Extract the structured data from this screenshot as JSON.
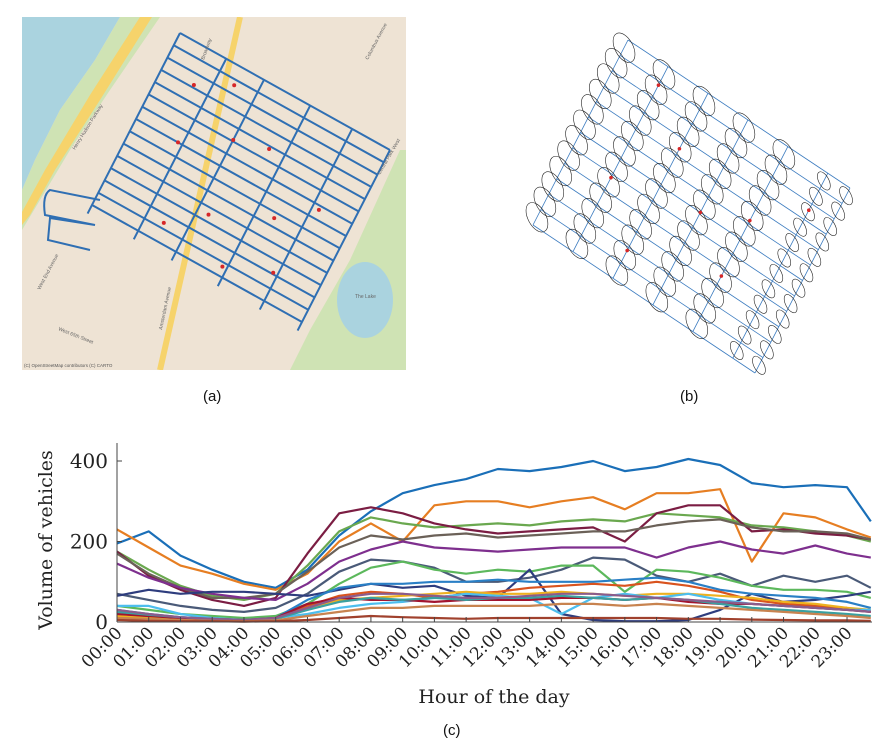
{
  "panels": {
    "a": {
      "label": "(a)",
      "attribution": "(C) OpenStreetMap contributors (C) CARTO",
      "map_labels": [
        "Henry Hudson Parkway",
        "West End Avenue",
        "Broadway",
        "Amsterdam Avenue",
        "Columbus Avenue",
        "Central Park West",
        "West 65th Street",
        "The Lake"
      ]
    },
    "b": {
      "label": "(b)"
    },
    "c": {
      "label": "(c)"
    }
  },
  "colors": {
    "road_network": "#2f6fb3",
    "water": "#aad3df",
    "park": "#cfe3b4",
    "highway": "#f6d36b",
    "nodes": "#d62728"
  },
  "chart_data": {
    "type": "line",
    "xlabel": "Hour of the day",
    "ylabel": "Volume of vehicles",
    "ylim": [
      0,
      450
    ],
    "yticks": [
      0,
      200,
      400
    ],
    "xticks": [
      "00:00",
      "01:00",
      "02:00",
      "03:00",
      "04:00",
      "05:00",
      "06:00",
      "07:00",
      "08:00",
      "09:00",
      "10:00",
      "11:00",
      "12:00",
      "13:00",
      "14:00",
      "15:00",
      "16:00",
      "17:00",
      "18:00",
      "19:00",
      "20:00",
      "21:00",
      "22:00",
      "23:00"
    ],
    "x": [
      0,
      1,
      2,
      3,
      4,
      5,
      6,
      7,
      8,
      9,
      10,
      11,
      12,
      13,
      14,
      15,
      16,
      17,
      18,
      19,
      20,
      21,
      22,
      23,
      23.75
    ],
    "grid": false,
    "series": [
      {
        "color": "#1a6fb8",
        "values": [
          195,
          225,
          165,
          130,
          100,
          85,
          130,
          215,
          275,
          320,
          340,
          355,
          380,
          375,
          385,
          400,
          375,
          385,
          405,
          390,
          345,
          335,
          340,
          335,
          250
        ]
      },
      {
        "color": "#e67e22",
        "values": [
          230,
          185,
          140,
          120,
          95,
          80,
          120,
          200,
          245,
          200,
          290,
          300,
          300,
          285,
          300,
          310,
          280,
          320,
          320,
          330,
          150,
          270,
          260,
          230,
          210
        ]
      },
      {
        "color": "#6aa84f",
        "values": [
          175,
          130,
          90,
          65,
          55,
          70,
          140,
          225,
          260,
          245,
          235,
          240,
          245,
          240,
          250,
          255,
          250,
          270,
          265,
          260,
          240,
          235,
          225,
          215,
          200
        ]
      },
      {
        "color": "#7b1d43",
        "values": [
          175,
          115,
          80,
          55,
          40,
          60,
          170,
          270,
          285,
          270,
          245,
          230,
          220,
          225,
          230,
          235,
          200,
          270,
          290,
          290,
          225,
          230,
          220,
          215,
          205
        ]
      },
      {
        "color": "#6b6158",
        "values": [
          170,
          120,
          85,
          60,
          60,
          70,
          125,
          185,
          215,
          205,
          215,
          220,
          210,
          215,
          220,
          225,
          225,
          240,
          250,
          255,
          235,
          225,
          225,
          220,
          205
        ]
      },
      {
        "color": "#7e2f8e",
        "values": [
          145,
          110,
          85,
          70,
          60,
          55,
          95,
          150,
          180,
          200,
          185,
          180,
          175,
          180,
          185,
          185,
          185,
          160,
          185,
          200,
          180,
          170,
          190,
          170,
          160
        ]
      },
      {
        "color": "#4a5a78",
        "values": [
          70,
          55,
          40,
          30,
          25,
          35,
          70,
          125,
          155,
          150,
          135,
          100,
          100,
          110,
          130,
          160,
          155,
          115,
          100,
          120,
          90,
          115,
          100,
          115,
          85
        ]
      },
      {
        "color": "#5cb85c",
        "values": [
          40,
          30,
          20,
          15,
          10,
          15,
          45,
          95,
          135,
          150,
          130,
          120,
          130,
          125,
          140,
          140,
          75,
          130,
          125,
          110,
          90,
          80,
          80,
          75,
          60
        ]
      },
      {
        "color": "#2e3d7e",
        "values": [
          65,
          80,
          70,
          75,
          75,
          70,
          65,
          80,
          95,
          85,
          90,
          65,
          60,
          130,
          20,
          5,
          2,
          2,
          5,
          30,
          70,
          50,
          55,
          65,
          75
        ]
      },
      {
        "color": "#2a7fc5",
        "values": [
          30,
          20,
          12,
          8,
          5,
          10,
          55,
          85,
          95,
          95,
          100,
          100,
          105,
          100,
          100,
          100,
          105,
          110,
          100,
          80,
          70,
          65,
          60,
          50,
          35
        ]
      },
      {
        "color": "#d9531e",
        "values": [
          20,
          12,
          8,
          5,
          3,
          10,
          40,
          65,
          75,
          70,
          60,
          70,
          75,
          85,
          90,
          95,
          90,
          100,
          90,
          75,
          55,
          45,
          40,
          35,
          25
        ]
      },
      {
        "color": "#edb120",
        "values": [
          15,
          10,
          6,
          4,
          3,
          8,
          35,
          55,
          60,
          65,
          70,
          75,
          70,
          70,
          75,
          70,
          65,
          70,
          70,
          65,
          60,
          50,
          45,
          35,
          30
        ]
      },
      {
        "color": "#4dbeee",
        "values": [
          40,
          40,
          20,
          10,
          5,
          10,
          20,
          35,
          45,
          50,
          60,
          70,
          65,
          60,
          20,
          60,
          70,
          60,
          70,
          55,
          45,
          40,
          35,
          30,
          30
        ]
      },
      {
        "color": "#a2142f",
        "values": [
          20,
          15,
          10,
          8,
          5,
          10,
          45,
          60,
          55,
          55,
          50,
          55,
          55,
          55,
          60,
          60,
          55,
          60,
          50,
          45,
          45,
          40,
          35,
          30,
          25
        ]
      },
      {
        "color": "#3aa0a0",
        "values": [
          25,
          18,
          12,
          8,
          5,
          8,
          30,
          50,
          60,
          55,
          60,
          55,
          60,
          60,
          65,
          60,
          55,
          60,
          55,
          45,
          35,
          30,
          25,
          20,
          15
        ]
      },
      {
        "color": "#8b5c8b",
        "values": [
          30,
          20,
          12,
          8,
          5,
          10,
          35,
          60,
          70,
          70,
          65,
          60,
          60,
          65,
          70,
          70,
          65,
          60,
          55,
          50,
          45,
          40,
          35,
          30,
          25
        ]
      },
      {
        "color": "#c8834f",
        "values": [
          10,
          8,
          5,
          3,
          2,
          4,
          15,
          25,
          35,
          35,
          40,
          40,
          40,
          40,
          45,
          45,
          40,
          45,
          40,
          35,
          30,
          25,
          20,
          15,
          10
        ]
      },
      {
        "color": "#a0412d",
        "values": [
          5,
          3,
          2,
          2,
          1,
          2,
          5,
          10,
          15,
          12,
          10,
          8,
          10,
          10,
          10,
          10,
          10,
          10,
          8,
          8,
          6,
          5,
          4,
          4,
          3
        ]
      }
    ]
  }
}
